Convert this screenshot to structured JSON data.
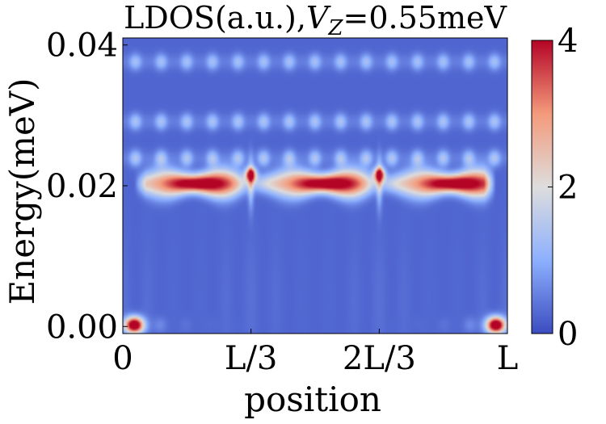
{
  "chart_data": {
    "type": "heatmap",
    "title_main": "LDOS(a.u.),",
    "title_var": "V",
    "title_sub": "Z",
    "title_rest": "=0.55meV",
    "xlabel": "position",
    "ylabel": "Energy(meV)",
    "x_ticks": [
      {
        "value": 0.0,
        "label": "0"
      },
      {
        "value": 0.3333,
        "label": "L/3"
      },
      {
        "value": 0.6667,
        "label": "2L/3"
      },
      {
        "value": 1.0,
        "label": "L"
      }
    ],
    "y_ticks": [
      {
        "value": 0.0,
        "label": "0.00"
      },
      {
        "value": 0.02,
        "label": "0.02"
      },
      {
        "value": 0.04,
        "label": "0.04"
      }
    ],
    "xlim": [
      0,
      1
    ],
    "ylim": [
      -0.001,
      0.041
    ],
    "colorbar": {
      "min": 0,
      "max": 4,
      "ticks": [
        {
          "value": 0,
          "label": "0"
        },
        {
          "value": 2,
          "label": "2"
        },
        {
          "value": 4,
          "label": "4"
        }
      ],
      "colormap": "coolwarm",
      "stops": [
        "#3b4cc0",
        "#8db0fe",
        "#dddddd",
        "#f49a7b",
        "#b40426"
      ]
    },
    "background_level": 0.25,
    "features": [
      {
        "name": "main-band",
        "energy": 0.0203,
        "x_start": 0.03,
        "x_end": 0.97,
        "peak": 4.0
      },
      {
        "name": "band-0.024",
        "energy": 0.0239,
        "x_start": 0.0,
        "x_end": 1.0,
        "peak": 1.3
      },
      {
        "name": "band-0.029",
        "energy": 0.0291,
        "x_start": 0.0,
        "x_end": 1.0,
        "peak": 1.2
      },
      {
        "name": "band-0.037",
        "energy": 0.0376,
        "x_start": 0.0,
        "x_end": 1.0,
        "peak": 1.1
      },
      {
        "name": "zero-mode-left",
        "energy": 0.0002,
        "x": 0.03,
        "peak": 4.0
      },
      {
        "name": "zero-mode-right",
        "energy": 0.0002,
        "x": 0.97,
        "peak": 4.0
      }
    ]
  }
}
